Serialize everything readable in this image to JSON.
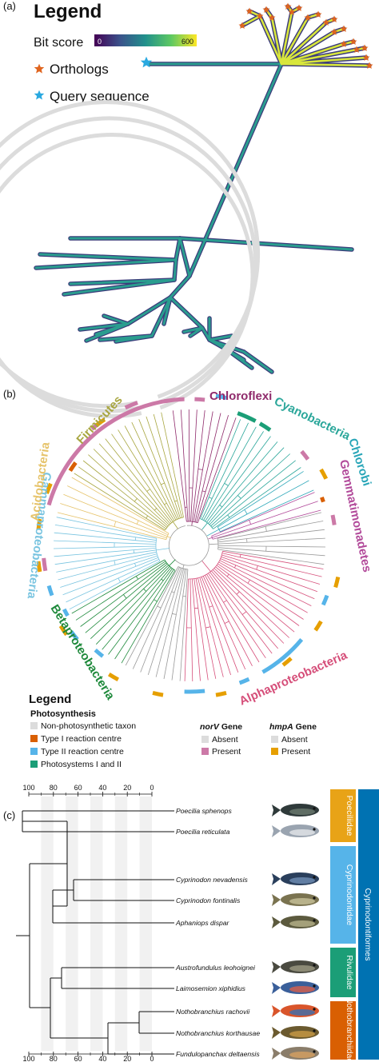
{
  "panel_a": {
    "label": "(a)",
    "legend_title": "Legend",
    "bit_score_label": "Bit score",
    "bit_score_min": "0",
    "bit_score_max": "600",
    "orthologs_label": "Orthologs",
    "query_label": "Query sequence",
    "colors": {
      "ortholog": "#e0651f",
      "query": "#2aa9e0",
      "branch_outline": "#3b3b7a",
      "branch_fill": "#2a9d8f"
    }
  },
  "panel_b": {
    "label": "(b)",
    "phyla": [
      {
        "name": "Chloroflexi",
        "color": "#8f2a6b"
      },
      {
        "name": "Cyanobacteria",
        "color": "#2aa69a"
      },
      {
        "name": "Chlorobi",
        "color": "#2aa6b8"
      },
      {
        "name": "Gemmatimonadetes",
        "color": "#b24a9a"
      },
      {
        "name": "Alphaproteobacteria",
        "color": "#d64f7a"
      },
      {
        "name": "Betaproteobacteria",
        "color": "#1f8a3c"
      },
      {
        "name": "Gammaproteobacteria",
        "color": "#79c4e0"
      },
      {
        "name": "Acidobacteria",
        "color": "#e6c36a"
      },
      {
        "name": "Firmicutes",
        "color": "#a8a640"
      }
    ],
    "legend": {
      "title": "Legend",
      "photosynthesis_title": "Photosynthesis",
      "photosynthesis_items": [
        {
          "label": "Non-photosynthetic taxon",
          "color": "#dcdcdc"
        },
        {
          "label": "Type I reaction centre",
          "color": "#d95f02"
        },
        {
          "label": "Type II reaction centre",
          "color": "#56b4e9"
        },
        {
          "label": "Photosystems I and II",
          "color": "#1b9e77"
        }
      ],
      "norv_gene": "norV",
      "hmpa_gene": "hmpA",
      "gene_word": "Gene",
      "norv_items": [
        {
          "label": "Absent",
          "color": "#dcdcdc"
        },
        {
          "label": "Present",
          "color": "#cc79a7"
        }
      ],
      "hmpa_items": [
        {
          "label": "Absent",
          "color": "#dcdcdc"
        },
        {
          "label": "Present",
          "color": "#e69f00"
        }
      ]
    }
  },
  "panel_c": {
    "label": "(c)",
    "axis_ticks": [
      "100",
      "80",
      "60",
      "40",
      "20",
      "0"
    ],
    "taxa": [
      "Poecilia sphenops",
      "Poecilia reticulata",
      "Cyprinodon nevadensis",
      "Cyprinodon fontinalis",
      "Aphaniops dispar",
      "Austrofundulus leohoignei",
      "Laimosemion xiphidius",
      "Nothobranchius rachovii",
      "Nothobranchius korthausae",
      "Fundulopanchax deltaensis"
    ],
    "families": [
      {
        "name": "Poeciliidae",
        "color": "#e8a317"
      },
      {
        "name": "Cyprinodontidae",
        "color": "#56b4e9"
      },
      {
        "name": "Rivulidae",
        "color": "#1b9e77"
      },
      {
        "name": "Nothobranchiidae",
        "color": "#d95f02"
      }
    ],
    "order": {
      "name": "Cyprinodontiformes",
      "color": "#0072b2"
    }
  }
}
